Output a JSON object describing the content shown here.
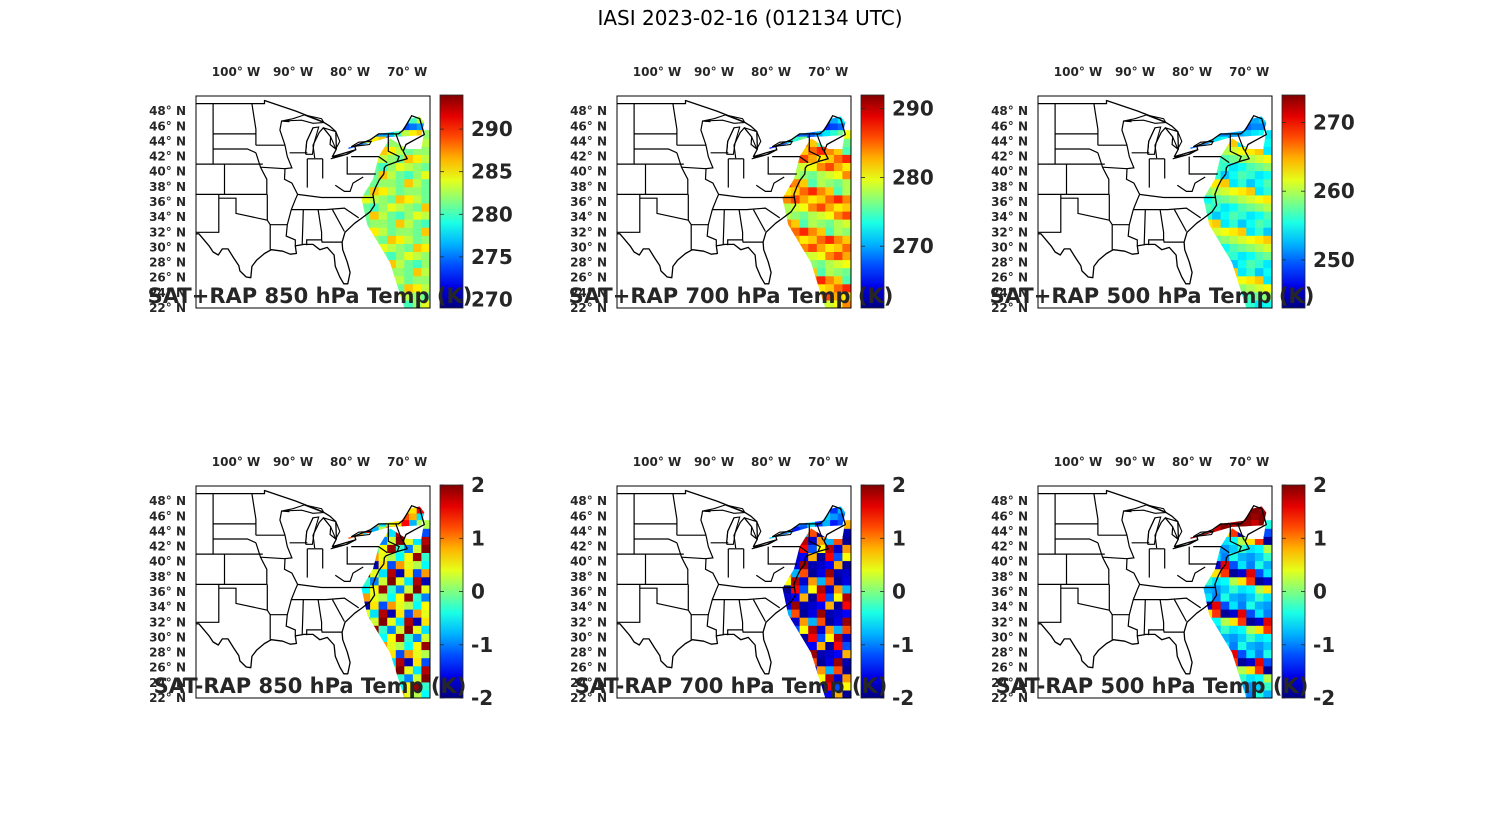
{
  "figure_title": "IASI 2023-02-16 (012134 UTC)",
  "map": {
    "lon_labels": [
      "100° W",
      "90° W",
      "80° W",
      "70° W"
    ],
    "lon_values": [
      -100,
      -90,
      -80,
      -70
    ],
    "lat_labels": [
      "48° N",
      "46° N",
      "44° N",
      "42° N",
      "40° N",
      "38° N",
      "36° N",
      "34° N",
      "32° N",
      "30° N",
      "28° N",
      "26° N",
      "24° N",
      "22° N"
    ],
    "lat_values": [
      48,
      46,
      44,
      42,
      40,
      38,
      36,
      34,
      32,
      30,
      28,
      26,
      24,
      22
    ],
    "lon_range": [
      -107,
      -66
    ],
    "lat_range": [
      22,
      50
    ]
  },
  "colormap": "jet",
  "chart_data": [
    {
      "type": "heatmap",
      "id": "sat-rap-850-sum",
      "title": "SAT+RAP 850 hPa Temp (K)",
      "clim": [
        269,
        294
      ],
      "ticks": [
        270,
        275,
        280,
        285,
        290
      ],
      "tick_labels": [
        "270",
        "275",
        "280",
        "285",
        "290"
      ],
      "swath_values": [
        282,
        281,
        286,
        283,
        281,
        280,
        282,
        284,
        283,
        282,
        281,
        286,
        285,
        283,
        281,
        282
      ],
      "land_values": [
        274,
        275,
        276,
        277,
        280,
        283,
        285,
        286
      ]
    },
    {
      "type": "heatmap",
      "id": "sat-rap-700-sum",
      "title": "SAT+RAP 700 hPa Temp (K)",
      "clim": [
        261,
        292
      ],
      "ticks": [
        270,
        280,
        290
      ],
      "tick_labels": [
        "270",
        "280",
        "290"
      ],
      "swath_values": [
        275,
        278,
        277,
        276,
        278,
        279,
        280,
        284,
        286,
        283,
        281,
        282,
        285,
        287,
        284,
        282
      ],
      "land_values": [
        266,
        267,
        268,
        268,
        270,
        272,
        274,
        276
      ]
    },
    {
      "type": "heatmap",
      "id": "sat-rap-500-sum",
      "title": "SAT+RAP 500 hPa Temp (K)",
      "clim": [
        243,
        274
      ],
      "ticks": [
        250,
        260,
        270
      ],
      "tick_labels": [
        "250",
        "260",
        "270"
      ],
      "swath_values": [
        254,
        256,
        253,
        255,
        257,
        256,
        254,
        255,
        257,
        258,
        259,
        260,
        261,
        262,
        263,
        264
      ],
      "land_values": [
        250,
        251,
        251,
        252,
        252,
        253,
        254,
        255
      ]
    },
    {
      "type": "heatmap",
      "id": "sat-rap-850-diff",
      "title": "SAT-RAP 850 hPa Temp (K)",
      "clim": [
        -2,
        2
      ],
      "ticks": [
        -2,
        -1,
        0,
        1,
        2
      ],
      "tick_labels": [
        "-2",
        "-1",
        "0",
        "1",
        "2"
      ],
      "swath_values": [
        1.8,
        -1.8,
        0.6,
        -1.2,
        0.9,
        0.4,
        0.2,
        -0.5,
        0.5,
        1.9,
        -0.3,
        -1.0,
        0.3,
        2.0,
        0.4,
        -0.6
      ],
      "land_values": [
        1.2,
        0.8,
        -0.6,
        0.4,
        0.6,
        1.5,
        -0.8,
        0.2
      ]
    },
    {
      "type": "heatmap",
      "id": "sat-rap-700-diff",
      "title": "SAT-RAP 700 hPa Temp (K)",
      "clim": [
        -2,
        2
      ],
      "ticks": [
        -2,
        -1,
        0,
        1,
        2
      ],
      "tick_labels": [
        "-2",
        "-1",
        "0",
        "1",
        "2"
      ],
      "swath_values": [
        -1.9,
        -1.6,
        1.9,
        -1.8,
        -1.7,
        -1.5,
        0.8,
        -1.9,
        1.5,
        -1.2,
        0.5,
        1.8,
        -1.7,
        0.9,
        -0.8,
        1.2
      ],
      "land_values": [
        -0.7,
        -0.9,
        -1.1,
        -0.6,
        -1.3,
        -0.8,
        -1.4,
        -1.2
      ]
    },
    {
      "type": "heatmap",
      "id": "sat-rap-500-diff",
      "title": "SAT-RAP 500 hPa Temp (K)",
      "clim": [
        -2,
        2
      ],
      "ticks": [
        -2,
        -1,
        0,
        1,
        2
      ],
      "tick_labels": [
        "-2",
        "-1",
        "0",
        "1",
        "2"
      ],
      "swath_values": [
        -1.9,
        -1.7,
        1.6,
        -1.2,
        -0.6,
        -1.0,
        -0.4,
        -0.8,
        -0.9,
        -0.7,
        -0.3,
        -0.6,
        -0.5,
        0.2,
        0.6,
        1.3
      ],
      "land_values": [
        2.0,
        1.9,
        2.0,
        1.8,
        2.0,
        1.9,
        1.7,
        2.0
      ]
    }
  ]
}
